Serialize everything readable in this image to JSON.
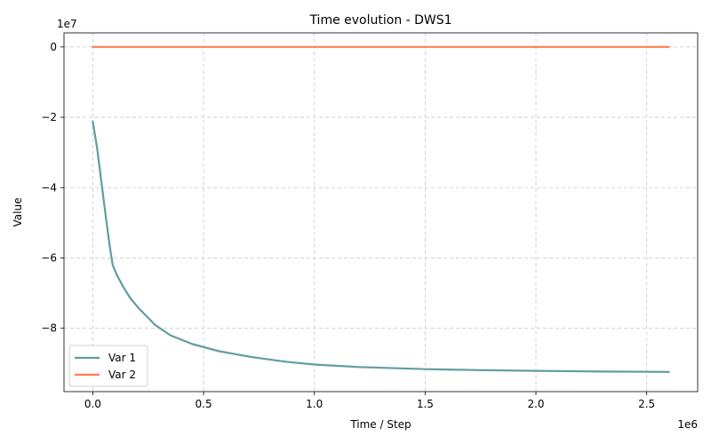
{
  "chart_data": {
    "type": "line",
    "title": "Time evolution - DWS1",
    "xlabel": "Time / Step",
    "ylabel": "Value",
    "x_offset_label": "1e6",
    "y_offset_label": "1e7",
    "xlim": [
      -0.13,
      2.73
    ],
    "ylim": [
      -9.8,
      0.4
    ],
    "x_ticks": [
      0.0,
      0.5,
      1.0,
      1.5,
      2.0,
      2.5
    ],
    "x_tick_labels": [
      "0.0",
      "0.5",
      "1.0",
      "1.5",
      "2.0",
      "2.5"
    ],
    "y_ticks": [
      0,
      -2,
      -4,
      -6,
      -8
    ],
    "y_tick_labels": [
      "0",
      "−2",
      "−4",
      "−6",
      "−8"
    ],
    "grid": true,
    "legend_position": "lower-left",
    "series": [
      {
        "name": "Var 1",
        "color": "#5f9ea0",
        "x": [
          0.0,
          0.02,
          0.04,
          0.06,
          0.075,
          0.09,
          0.11,
          0.14,
          0.17,
          0.21,
          0.25,
          0.28,
          0.35,
          0.45,
          0.57,
          0.72,
          0.87,
          1.0,
          1.2,
          1.5,
          1.75,
          2.0,
          2.3,
          2.6
        ],
        "y": [
          -2.12,
          -2.9,
          -3.9,
          -4.9,
          -5.6,
          -6.2,
          -6.5,
          -6.85,
          -7.15,
          -7.45,
          -7.7,
          -7.9,
          -8.2,
          -8.45,
          -8.65,
          -8.82,
          -8.95,
          -9.03,
          -9.1,
          -9.16,
          -9.19,
          -9.21,
          -9.23,
          -9.24
        ]
      },
      {
        "name": "Var 2",
        "color": "#ff7f50",
        "x": [
          0.0,
          2.6
        ],
        "y": [
          0.0,
          0.0
        ]
      }
    ]
  }
}
